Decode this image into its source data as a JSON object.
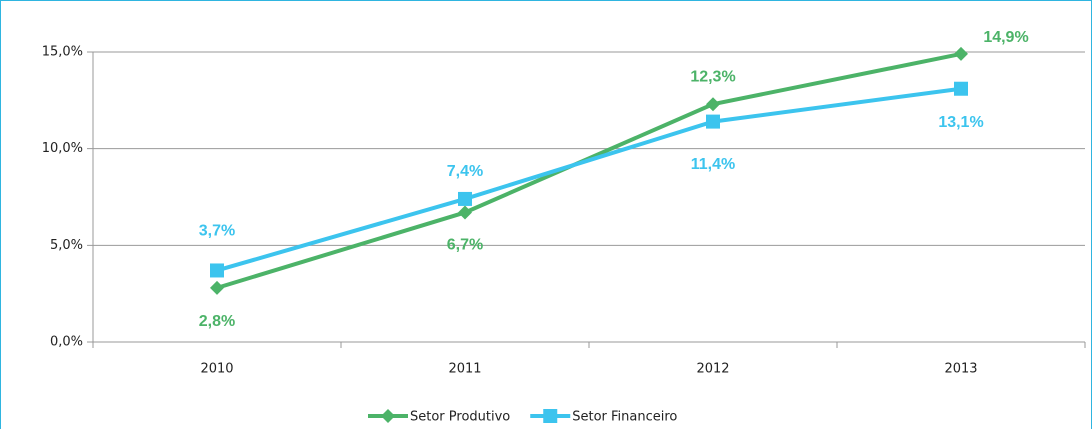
{
  "chart_data": {
    "type": "line",
    "categories": [
      "2010",
      "2011",
      "2012",
      "2013"
    ],
    "series": [
      {
        "name": "Setor Produtivo",
        "color": "#4cb368",
        "values": [
          2.8,
          6.7,
          12.3,
          14.9
        ],
        "value_labels": [
          "2,8%",
          "6,7%",
          "12,3%",
          "14,9%"
        ]
      },
      {
        "name": "Setor Financeiro",
        "color": "#3cc4ee",
        "values": [
          3.7,
          7.4,
          11.4,
          13.1
        ],
        "value_labels": [
          "3,7%",
          "7,4%",
          "11,4%",
          "13,1%"
        ]
      }
    ],
    "ylim": [
      0,
      15
    ],
    "yticks": [
      {
        "value": 0,
        "label": "0,0%"
      },
      {
        "value": 5,
        "label": "5,0%"
      },
      {
        "value": 10,
        "label": "10,0%"
      },
      {
        "value": 15,
        "label": "15,0%"
      }
    ],
    "grid": true,
    "legend": "bottom"
  }
}
